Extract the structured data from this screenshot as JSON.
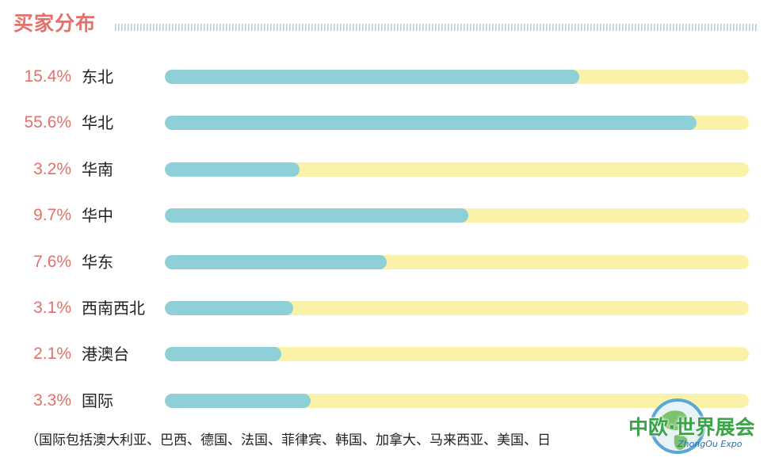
{
  "header": {
    "title": "买家分布"
  },
  "chart_data": {
    "type": "bar",
    "orientation": "horizontal",
    "title": "买家分布",
    "categories": [
      "东北",
      "华北",
      "华南",
      "华中",
      "华东",
      "西南西北",
      "港澳台",
      "国际"
    ],
    "value_labels": [
      "15.4%",
      "55.6%",
      "3.2%",
      "9.7%",
      "7.6%",
      "3.1%",
      "2.1%",
      "3.3%"
    ],
    "values": [
      15.4,
      55.6,
      3.2,
      9.7,
      7.6,
      3.1,
      2.1,
      3.3
    ],
    "bar_fill_fraction": [
      0.71,
      0.91,
      0.23,
      0.52,
      0.38,
      0.22,
      0.2,
      0.25
    ],
    "colors": {
      "fill": "#8fcfd8",
      "track": "#fbf2aa",
      "label": "#e2706b"
    }
  },
  "footnote": "（国际包括澳大利亚、巴西、德国、法国、菲律宾、韩国、加拿大、马来西亚、美国、日",
  "logo": {
    "name": "中欧·世界展会",
    "sub": "ZhongOu Expo"
  }
}
